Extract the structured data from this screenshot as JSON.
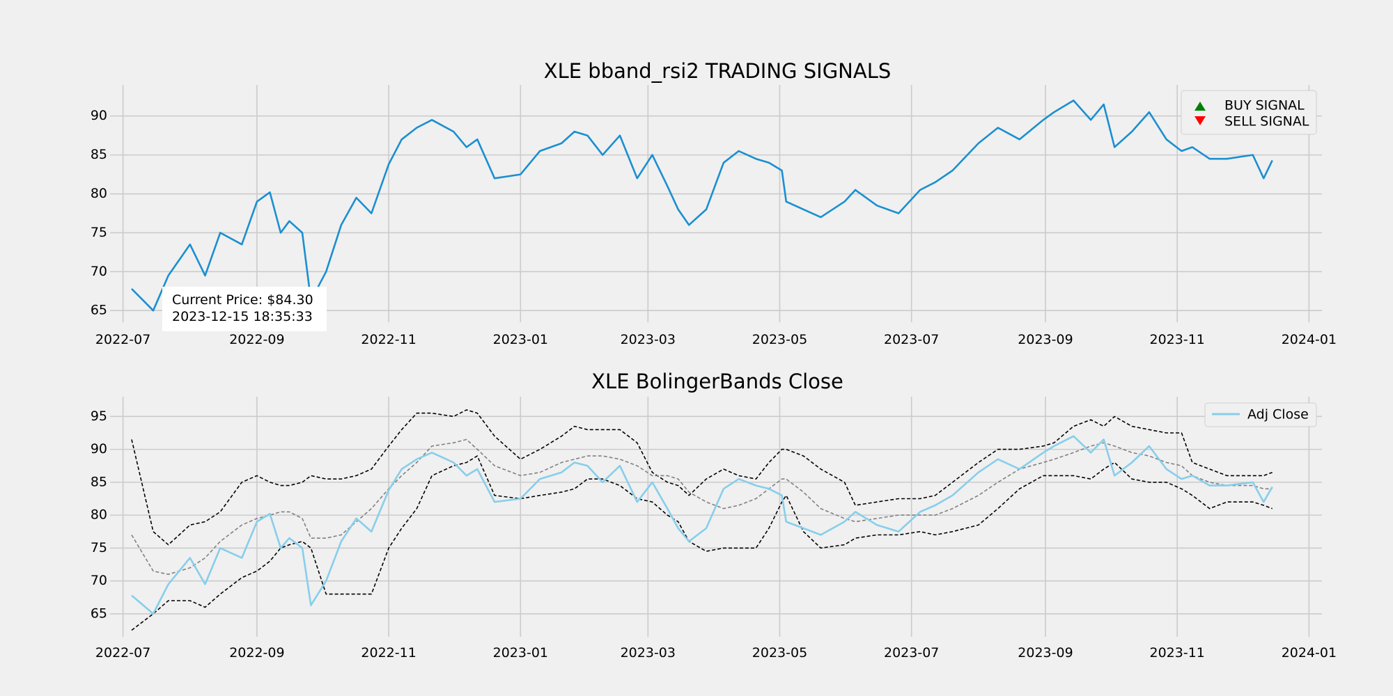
{
  "figure": {
    "background": "#f0f0f0"
  },
  "chart_data": [
    {
      "type": "line",
      "title": "XLE bband_rsi2 TRADING SIGNALS",
      "xlabel": "",
      "ylabel": "",
      "x_range": [
        "2022-06-25",
        "2024-01-07"
      ],
      "ylim": [
        63.5,
        94
      ],
      "x_ticks": [
        "2022-07",
        "2022-09",
        "2022-11",
        "2023-01",
        "2023-03",
        "2023-05",
        "2023-07",
        "2023-09",
        "2023-11",
        "2024-01"
      ],
      "y_ticks": [
        65,
        70,
        75,
        80,
        85,
        90
      ],
      "grid": true,
      "legend": {
        "placement": "top-right",
        "entries": [
          "BUY SIGNAL",
          "SELL SIGNAL"
        ]
      },
      "colors": {
        "price": "#1a8fd1",
        "buy": "#008000",
        "sell": "#ff0000"
      },
      "series": [
        {
          "x": [
            "2022-07-05",
            "2022-07-15",
            "2022-07-22",
            "2022-08-01",
            "2022-08-08",
            "2022-08-15",
            "2022-08-25",
            "2022-09-01",
            "2022-09-07",
            "2022-09-12",
            "2022-09-16",
            "2022-09-22",
            "2022-09-26",
            "2022-10-03",
            "2022-10-10",
            "2022-10-17",
            "2022-10-24",
            "2022-11-01",
            "2022-11-07",
            "2022-11-14",
            "2022-11-21",
            "2022-12-01",
            "2022-12-07",
            "2022-12-12",
            "2022-12-20",
            "2023-01-01",
            "2023-01-10",
            "2023-01-20",
            "2023-01-26",
            "2023-02-01",
            "2023-02-08",
            "2023-02-16",
            "2023-02-24",
            "2023-03-03",
            "2023-03-10",
            "2023-03-15",
            "2023-03-20",
            "2023-03-28",
            "2023-04-05",
            "2023-04-12",
            "2023-04-20",
            "2023-04-26",
            "2023-05-02",
            "2023-05-04",
            "2023-05-12",
            "2023-05-20",
            "2023-05-31",
            "2023-06-05",
            "2023-06-15",
            "2023-06-25",
            "2023-07-05",
            "2023-07-12",
            "2023-07-20",
            "2023-08-01",
            "2023-08-10",
            "2023-08-20",
            "2023-08-31",
            "2023-09-05",
            "2023-09-14",
            "2023-09-22",
            "2023-09-28",
            "2023-10-03",
            "2023-10-11",
            "2023-10-19",
            "2023-10-27",
            "2023-11-03",
            "2023-11-08",
            "2023-11-16",
            "2023-11-24",
            "2023-12-01",
            "2023-12-06",
            "2023-12-11",
            "2023-12-15"
          ],
          "y": [
            67.8,
            65,
            69.5,
            73.5,
            69.5,
            75,
            73.5,
            79,
            80.2,
            75,
            76.5,
            75,
            66.3,
            70,
            76,
            79.5,
            77.5,
            83.8,
            87,
            88.5,
            89.5,
            88,
            86,
            87,
            82,
            82.5,
            85.5,
            86.5,
            88,
            87.5,
            85,
            87.5,
            82,
            85,
            81,
            78,
            76,
            78,
            84,
            85.5,
            84.5,
            84,
            83,
            79,
            78,
            77,
            79,
            80.5,
            78.5,
            77.5,
            80.5,
            81.5,
            83,
            86.5,
            88.5,
            87,
            89.5,
            90.5,
            92,
            89.5,
            91.5,
            86,
            88,
            90.5,
            87,
            85.5,
            86,
            84.5,
            84.5,
            84.8,
            85,
            82,
            84.3
          ]
        }
      ],
      "signals": [
        {
          "type": "buy",
          "x": "2022-09-26",
          "y": 66.3
        }
      ],
      "annotation": {
        "line1": "Current Price: $84.30",
        "line2": "2023-12-15 18:35:33"
      }
    },
    {
      "type": "line",
      "title": "XLE BolingerBands Close",
      "xlabel": "",
      "ylabel": "",
      "x_range": [
        "2022-06-25",
        "2024-01-07"
      ],
      "ylim": [
        61.5,
        98
      ],
      "x_ticks": [
        "2022-07",
        "2022-09",
        "2022-11",
        "2023-01",
        "2023-03",
        "2023-05",
        "2023-07",
        "2023-09",
        "2023-11",
        "2024-01"
      ],
      "y_ticks": [
        65,
        70,
        75,
        80,
        85,
        90,
        95
      ],
      "grid": true,
      "legend": {
        "placement": "top-right",
        "entries": [
          "Adj Close"
        ]
      },
      "colors": {
        "close": "#87ceeb",
        "upper": "#000000",
        "middle": "#808080",
        "lower": "#000000"
      },
      "x": [
        "2022-07-05",
        "2022-07-15",
        "2022-07-22",
        "2022-08-01",
        "2022-08-08",
        "2022-08-15",
        "2022-08-25",
        "2022-09-01",
        "2022-09-07",
        "2022-09-12",
        "2022-09-16",
        "2022-09-22",
        "2022-09-26",
        "2022-10-03",
        "2022-10-10",
        "2022-10-17",
        "2022-10-24",
        "2022-11-01",
        "2022-11-07",
        "2022-11-14",
        "2022-11-21",
        "2022-12-01",
        "2022-12-07",
        "2022-12-12",
        "2022-12-20",
        "2023-01-01",
        "2023-01-10",
        "2023-01-20",
        "2023-01-26",
        "2023-02-01",
        "2023-02-08",
        "2023-02-16",
        "2023-02-24",
        "2023-03-03",
        "2023-03-10",
        "2023-03-15",
        "2023-03-20",
        "2023-03-28",
        "2023-04-05",
        "2023-04-12",
        "2023-04-20",
        "2023-04-26",
        "2023-05-02",
        "2023-05-04",
        "2023-05-12",
        "2023-05-20",
        "2023-05-31",
        "2023-06-05",
        "2023-06-15",
        "2023-06-25",
        "2023-07-05",
        "2023-07-12",
        "2023-07-20",
        "2023-08-01",
        "2023-08-10",
        "2023-08-20",
        "2023-08-31",
        "2023-09-05",
        "2023-09-14",
        "2023-09-22",
        "2023-09-28",
        "2023-10-03",
        "2023-10-11",
        "2023-10-19",
        "2023-10-27",
        "2023-11-03",
        "2023-11-08",
        "2023-11-16",
        "2023-11-24",
        "2023-12-01",
        "2023-12-06",
        "2023-12-11",
        "2023-12-15"
      ],
      "series": [
        {
          "name": "Adj Close",
          "role": "close",
          "y": [
            67.8,
            65,
            69.5,
            73.5,
            69.5,
            75,
            73.5,
            79,
            80.2,
            75,
            76.5,
            75,
            66.3,
            70,
            76,
            79.5,
            77.5,
            83.8,
            87,
            88.5,
            89.5,
            88,
            86,
            87,
            82,
            82.5,
            85.5,
            86.5,
            88,
            87.5,
            85,
            87.5,
            82,
            85,
            81,
            78,
            76,
            78,
            84,
            85.5,
            84.5,
            84,
            83,
            79,
            78,
            77,
            79,
            80.5,
            78.5,
            77.5,
            80.5,
            81.5,
            83,
            86.5,
            88.5,
            87,
            89.5,
            90.5,
            92,
            89.5,
            91.5,
            86,
            88,
            90.5,
            87,
            85.5,
            86,
            84.5,
            84.5,
            84.8,
            85,
            82,
            84.3
          ]
        },
        {
          "role": "upper",
          "y": [
            91.5,
            77.5,
            75.5,
            78.5,
            79,
            80.5,
            85,
            86,
            85,
            84.5,
            84.5,
            85,
            86,
            85.5,
            85.5,
            86,
            87,
            90.5,
            93,
            95.5,
            95.5,
            95,
            96,
            95.5,
            92,
            88.5,
            90,
            92,
            93.5,
            93,
            93,
            93,
            91,
            86.5,
            85,
            84.5,
            83,
            85.5,
            87,
            86,
            85.5,
            88,
            90,
            90,
            89,
            87,
            85,
            81.5,
            82,
            82.5,
            82.5,
            83,
            85,
            88,
            90,
            90,
            90.5,
            91,
            93.5,
            94.5,
            93.5,
            95,
            93.5,
            93,
            92.5,
            92.5,
            88,
            87,
            86,
            86,
            86,
            86,
            86.5
          ]
        },
        {
          "role": "middle",
          "y": [
            77,
            71.5,
            71,
            72,
            73.5,
            76,
            78.5,
            79.5,
            80,
            80.5,
            80.5,
            79.5,
            76.5,
            76.5,
            77,
            79,
            81,
            84,
            86,
            88,
            90.5,
            91,
            91.5,
            90,
            87.5,
            86,
            86.5,
            88,
            88.5,
            89,
            89,
            88.5,
            87.5,
            86,
            86,
            85.5,
            83.5,
            82,
            81,
            81.5,
            82.5,
            84,
            85.5,
            85.5,
            83.5,
            81,
            79.5,
            79,
            79.5,
            80,
            80,
            80,
            81,
            83,
            85,
            87,
            88,
            88.5,
            89.5,
            90.5,
            91,
            90.5,
            89.5,
            89,
            88,
            87.5,
            86,
            85,
            84.5,
            84.5,
            84.5,
            84,
            84
          ]
        },
        {
          "role": "lower",
          "y": [
            62.5,
            65,
            67,
            67,
            66,
            68,
            70.5,
            71.5,
            73,
            75,
            75.5,
            76,
            75,
            68,
            68,
            68,
            68,
            75,
            78,
            81,
            86,
            87.5,
            88,
            89,
            83,
            82.5,
            83,
            83.5,
            84,
            85.5,
            85.5,
            84.5,
            82.5,
            82,
            80,
            79,
            76,
            74.5,
            75,
            75,
            75,
            78,
            82,
            83,
            77.5,
            75,
            75.5,
            76.5,
            77,
            77,
            77.5,
            77,
            77.5,
            78.5,
            81,
            84,
            86,
            86,
            86,
            85.5,
            87,
            88,
            85.5,
            85,
            85,
            84,
            83,
            81,
            82,
            82,
            82,
            81.5,
            81
          ]
        }
      ]
    }
  ]
}
